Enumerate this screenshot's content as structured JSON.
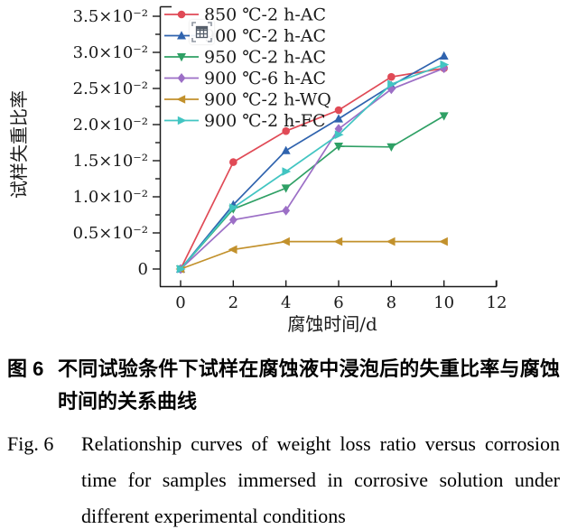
{
  "chart_data": {
    "type": "line",
    "title": "",
    "xlabel": "腐蚀时间/d",
    "ylabel": "试样失重比率",
    "x": [
      0,
      2,
      4,
      6,
      8,
      10
    ],
    "series": [
      {
        "name": "850 ℃-2 h-AC",
        "color": "#e04a56",
        "marker": "circle",
        "values": [
          0,
          0.0148,
          0.0191,
          0.022,
          0.0266,
          0.0278
        ]
      },
      {
        "name": "900 ℃-2 h-AC",
        "color": "#2f63ae",
        "marker": "triangle-up",
        "values": [
          0,
          0.0089,
          0.0164,
          0.0208,
          0.0254,
          0.0295
        ]
      },
      {
        "name": "950 ℃-2 h-AC",
        "color": "#2fa065",
        "marker": "triangle-down",
        "values": [
          0,
          0.0083,
          0.0112,
          0.017,
          0.0169,
          0.0212
        ]
      },
      {
        "name": "900 ℃-6 h-AC",
        "color": "#9c6fc6",
        "marker": "diamond",
        "values": [
          0,
          0.0068,
          0.0081,
          0.0194,
          0.0249,
          0.0278
        ]
      },
      {
        "name": "900 ℃-2 h-WQ",
        "color": "#c2912c",
        "marker": "triangle-left",
        "values": [
          0,
          0.0027,
          0.0038,
          0.0038,
          0.0038,
          0.0038
        ]
      },
      {
        "name": "900 ℃-2 h-FC",
        "color": "#42c5c2",
        "marker": "triangle-right",
        "values": [
          0,
          0.0085,
          0.0135,
          0.0186,
          0.0256,
          0.0283
        ]
      }
    ],
    "xticks": [
      0,
      2,
      4,
      6,
      8,
      10,
      12
    ],
    "xlim": [
      0,
      12
    ],
    "ytick_values": [
      0,
      0.005,
      0.01,
      0.015,
      0.02,
      0.025,
      0.03,
      0.035
    ],
    "ytick_labels": [
      "0",
      "0.5×10⁻²",
      "1.0×10⁻²",
      "1.5×10⁻²",
      "2.0×10⁻²",
      "2.5×10⁻²",
      "3.0×10⁻²",
      "3.5×10⁻²"
    ],
    "ylim": [
      -0.0024,
      0.0364
    ],
    "grid": false,
    "legend_position": "top-left"
  },
  "icons": {
    "overlay_tool": "table-capture-icon"
  },
  "caption_zh": {
    "label": "图 6",
    "text": "不同试验条件下试样在腐蚀液中浸泡后的失重比率与腐蚀时间的关系曲线"
  },
  "caption_en": {
    "label": "Fig. 6",
    "text": "Relationship curves of weight loss ratio versus corrosion time for samples immersed in corrosive solution under different experimental conditions"
  }
}
